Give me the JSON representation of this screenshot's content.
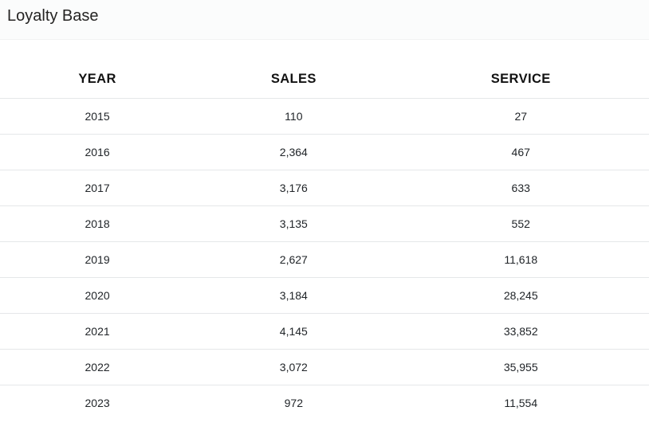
{
  "widget": {
    "title": "Loyalty Base"
  },
  "table": {
    "columns": [
      "YEAR",
      "SALES",
      "SERVICE"
    ],
    "rows": [
      {
        "year": "2015",
        "sales": "110",
        "service": "27"
      },
      {
        "year": "2016",
        "sales": "2,364",
        "service": "467"
      },
      {
        "year": "2017",
        "sales": "3,176",
        "service": "633"
      },
      {
        "year": "2018",
        "sales": "3,135",
        "service": "552"
      },
      {
        "year": "2019",
        "sales": "2,627",
        "service": "11,618"
      },
      {
        "year": "2020",
        "sales": "3,184",
        "service": "28,245"
      },
      {
        "year": "2021",
        "sales": "4,145",
        "service": "33,852"
      },
      {
        "year": "2022",
        "sales": "3,072",
        "service": "35,955"
      },
      {
        "year": "2023",
        "sales": "972",
        "service": "11,554"
      }
    ]
  },
  "colors": {
    "divider": "#e5e7e9",
    "header_text": "#121212",
    "body_text": "#212529",
    "title_text": "#252423",
    "titlebar_background": "#fbfcfc"
  },
  "chart_data": {
    "type": "table",
    "title": "Loyalty Base",
    "columns": [
      "YEAR",
      "SALES",
      "SERVICE"
    ],
    "categories": [
      "2015",
      "2016",
      "2017",
      "2018",
      "2019",
      "2020",
      "2021",
      "2022",
      "2023"
    ],
    "series": [
      {
        "name": "SALES",
        "values": [
          110,
          2364,
          3176,
          3135,
          2627,
          3184,
          4145,
          3072,
          972
        ]
      },
      {
        "name": "SERVICE",
        "values": [
          27,
          467,
          633,
          552,
          11618,
          28245,
          33852,
          35955,
          11554
        ]
      }
    ],
    "rows": [
      [
        "2015",
        "110",
        "27"
      ],
      [
        "2016",
        "2,364",
        "467"
      ],
      [
        "2017",
        "3,176",
        "633"
      ],
      [
        "2018",
        "3,135",
        "552"
      ],
      [
        "2019",
        "2,627",
        "11,618"
      ],
      [
        "2020",
        "3,184",
        "28,245"
      ],
      [
        "2021",
        "4,145",
        "33,852"
      ],
      [
        "2022",
        "3,072",
        "35,955"
      ],
      [
        "2023",
        "972",
        "11,554"
      ]
    ],
    "layout_hints": {
      "cell_alignment": "center",
      "header_case": "uppercase",
      "grid": "horizontal-dividers-only"
    }
  }
}
